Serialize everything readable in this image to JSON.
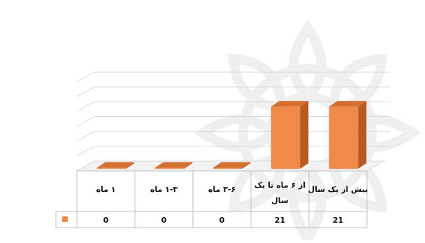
{
  "chart_data": {
    "type": "bar",
    "style": "3d-column-with-data-table",
    "direction": "rtl",
    "categories": [
      "بیش از یک سال",
      "از ۶ ماه تا یک سال",
      "۳-۶ ماه",
      "۱-۳ ماه",
      "۱ ماه"
    ],
    "series": [
      {
        "values": [
          21,
          21,
          0,
          0,
          0
        ]
      }
    ],
    "ylim": [
      0,
      30
    ],
    "gridlines": 6,
    "grid": true,
    "legend": "data-table-key",
    "colors": {
      "bar": "#F08A4B",
      "bar_side": "#B85A22",
      "bar_top": "#D47032",
      "grid": "#d9d9d9",
      "table_border": "#bfbfbf",
      "text": "#111111",
      "watermark": "#e8e8e8"
    }
  }
}
